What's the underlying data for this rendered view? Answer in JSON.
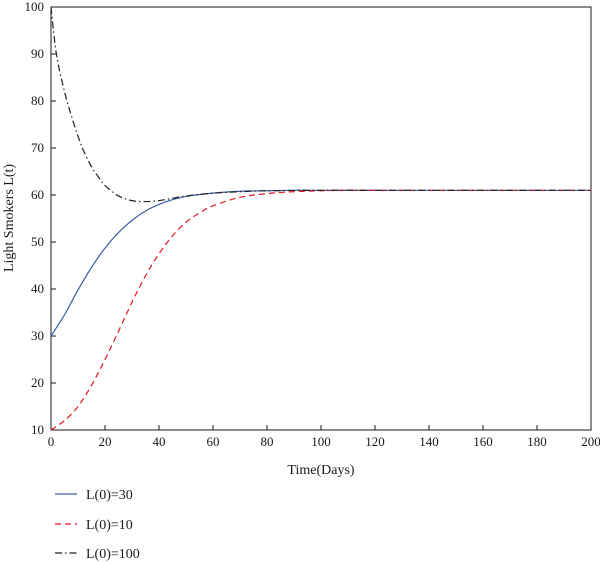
{
  "chart_data": {
    "type": "line",
    "title": "",
    "xlabel": "Time(Days)",
    "ylabel": "Light Smokers L(t)",
    "xlim": [
      0,
      200
    ],
    "ylim": [
      10,
      100
    ],
    "xticks": [
      0,
      20,
      40,
      60,
      80,
      100,
      120,
      140,
      160,
      180,
      200
    ],
    "yticks": [
      10,
      20,
      30,
      40,
      50,
      60,
      70,
      80,
      90,
      100
    ],
    "grid": false,
    "legend_position": "bottom-left, below plot",
    "series": [
      {
        "name": "L(0)=30",
        "color": "#3a5ea8",
        "style": "solid",
        "x": [
          0,
          5,
          10,
          15,
          20,
          25,
          30,
          35,
          40,
          45,
          50,
          60,
          70,
          80,
          90,
          100,
          120,
          140,
          160,
          180,
          200
        ],
        "y": [
          30,
          34.5,
          39.8,
          44.6,
          48.7,
          52.0,
          54.6,
          56.6,
          58.0,
          59.0,
          59.7,
          60.4,
          60.8,
          60.9,
          61.0,
          61.0,
          61.0,
          61.0,
          61.0,
          61.0,
          61.0
        ]
      },
      {
        "name": "L(0)=10",
        "color": "#e8141e",
        "style": "dashed",
        "x": [
          0,
          5,
          10,
          15,
          20,
          25,
          30,
          35,
          40,
          45,
          50,
          55,
          60,
          70,
          80,
          90,
          100,
          110,
          120,
          140,
          160,
          180,
          200
        ],
        "y": [
          10,
          12.0,
          15.0,
          19.5,
          25.0,
          31.0,
          37.2,
          42.8,
          47.5,
          51.3,
          54.2,
          56.2,
          57.7,
          59.5,
          60.3,
          60.7,
          60.9,
          61.0,
          61.0,
          61.0,
          61.0,
          61.0,
          61.0
        ]
      },
      {
        "name": "L(0)=100",
        "color": "#222222",
        "style": "dashdot",
        "x": [
          0,
          2,
          5,
          8,
          10,
          12,
          15,
          18,
          20,
          25,
          30,
          35,
          40,
          45,
          50,
          60,
          70,
          80,
          100,
          120,
          140,
          160,
          180,
          200
        ],
        "y": [
          100,
          90.0,
          82.0,
          76.0,
          72.5,
          69.5,
          66.0,
          63.5,
          62.0,
          59.8,
          58.8,
          58.6,
          58.8,
          59.3,
          59.8,
          60.4,
          60.7,
          60.9,
          61.0,
          61.0,
          61.0,
          61.0,
          61.0,
          61.0
        ]
      }
    ]
  }
}
